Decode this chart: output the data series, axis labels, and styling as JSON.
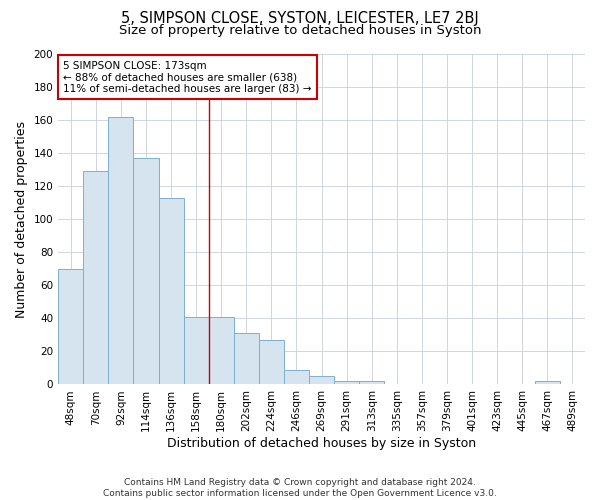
{
  "title1": "5, SIMPSON CLOSE, SYSTON, LEICESTER, LE7 2BJ",
  "title2": "Size of property relative to detached houses in Syston",
  "xlabel": "Distribution of detached houses by size in Syston",
  "ylabel": "Number of detached properties",
  "bar_labels": [
    "48sqm",
    "70sqm",
    "92sqm",
    "114sqm",
    "136sqm",
    "158sqm",
    "180sqm",
    "202sqm",
    "224sqm",
    "246sqm",
    "269sqm",
    "291sqm",
    "313sqm",
    "335sqm",
    "357sqm",
    "379sqm",
    "401sqm",
    "423sqm",
    "445sqm",
    "467sqm",
    "489sqm"
  ],
  "bar_values": [
    70,
    129,
    162,
    137,
    113,
    41,
    41,
    31,
    27,
    9,
    5,
    2,
    2,
    0,
    0,
    0,
    0,
    0,
    0,
    2,
    0
  ],
  "bar_color": "#d6e4f0",
  "bar_edge_color": "#7bafd4",
  "vline_x": 6.0,
  "vline_color": "#cc0000",
  "annotation_text": "5 SIMPSON CLOSE: 173sqm\n← 88% of detached houses are smaller (638)\n11% of semi-detached houses are larger (83) →",
  "annotation_box_color": "#ffffff",
  "annotation_box_edge": "#cc0000",
  "footer": "Contains HM Land Registry data © Crown copyright and database right 2024.\nContains public sector information licensed under the Open Government Licence v3.0.",
  "ylim": [
    0,
    200
  ],
  "yticks": [
    0,
    20,
    40,
    60,
    80,
    100,
    120,
    140,
    160,
    180,
    200
  ],
  "title1_fontsize": 10.5,
  "title2_fontsize": 9.5,
  "xlabel_fontsize": 9,
  "ylabel_fontsize": 9,
  "tick_fontsize": 7.5,
  "footer_fontsize": 6.5,
  "background_color": "#ffffff",
  "plot_bg_color": "#ffffff",
  "grid_color": "#c8d0dc"
}
